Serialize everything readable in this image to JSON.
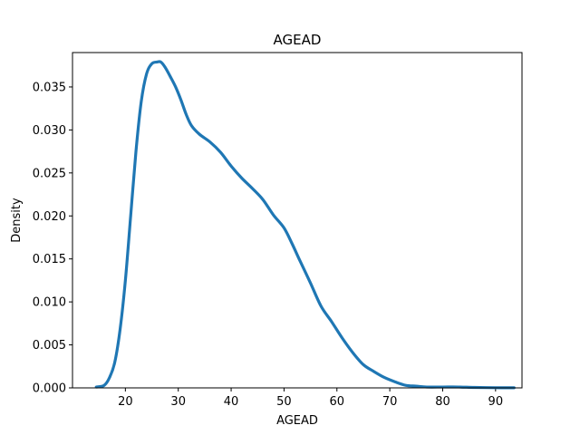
{
  "chart_data": {
    "type": "line",
    "title": "AGEAD",
    "xlabel": "AGEAD",
    "ylabel": "Density",
    "xlim": [
      10,
      95
    ],
    "ylim": [
      0,
      0.039
    ],
    "xticks": [
      "20",
      "30",
      "40",
      "50",
      "60",
      "70",
      "80",
      "90"
    ],
    "yticks": [
      "0.000",
      "0.005",
      "0.010",
      "0.015",
      "0.020",
      "0.025",
      "0.030",
      "0.035"
    ],
    "grid": false,
    "legend": "none",
    "line_color": "#1f77b4",
    "series": [
      {
        "x": [
          14.5,
          16,
          17,
          18,
          19,
          20,
          21,
          22,
          23,
          24,
          25,
          26,
          26.7,
          27.5,
          28.5,
          29.5,
          30.5,
          31.5,
          32.5,
          34,
          36,
          38,
          40,
          42,
          44,
          46,
          48,
          50,
          51.5,
          53,
          55,
          57,
          59,
          61,
          63,
          65,
          67,
          69,
          71,
          73,
          75,
          77,
          80,
          83,
          86,
          90,
          93.5
        ],
        "y": [
          0.0001,
          0.0003,
          0.0012,
          0.003,
          0.0068,
          0.0125,
          0.02,
          0.0275,
          0.0333,
          0.0365,
          0.0377,
          0.0379,
          0.0379,
          0.0373,
          0.0362,
          0.035,
          0.0335,
          0.0318,
          0.0305,
          0.0295,
          0.0286,
          0.0274,
          0.0258,
          0.0244,
          0.0232,
          0.0219,
          0.0201,
          0.0186,
          0.0168,
          0.0148,
          0.0122,
          0.0095,
          0.0077,
          0.0058,
          0.0041,
          0.0027,
          0.0019,
          0.0012,
          0.0007,
          0.0003,
          0.0002,
          0.0001,
          0.0001,
          0.0001,
          5e-05,
          2e-05,
          1e-05
        ]
      }
    ]
  }
}
